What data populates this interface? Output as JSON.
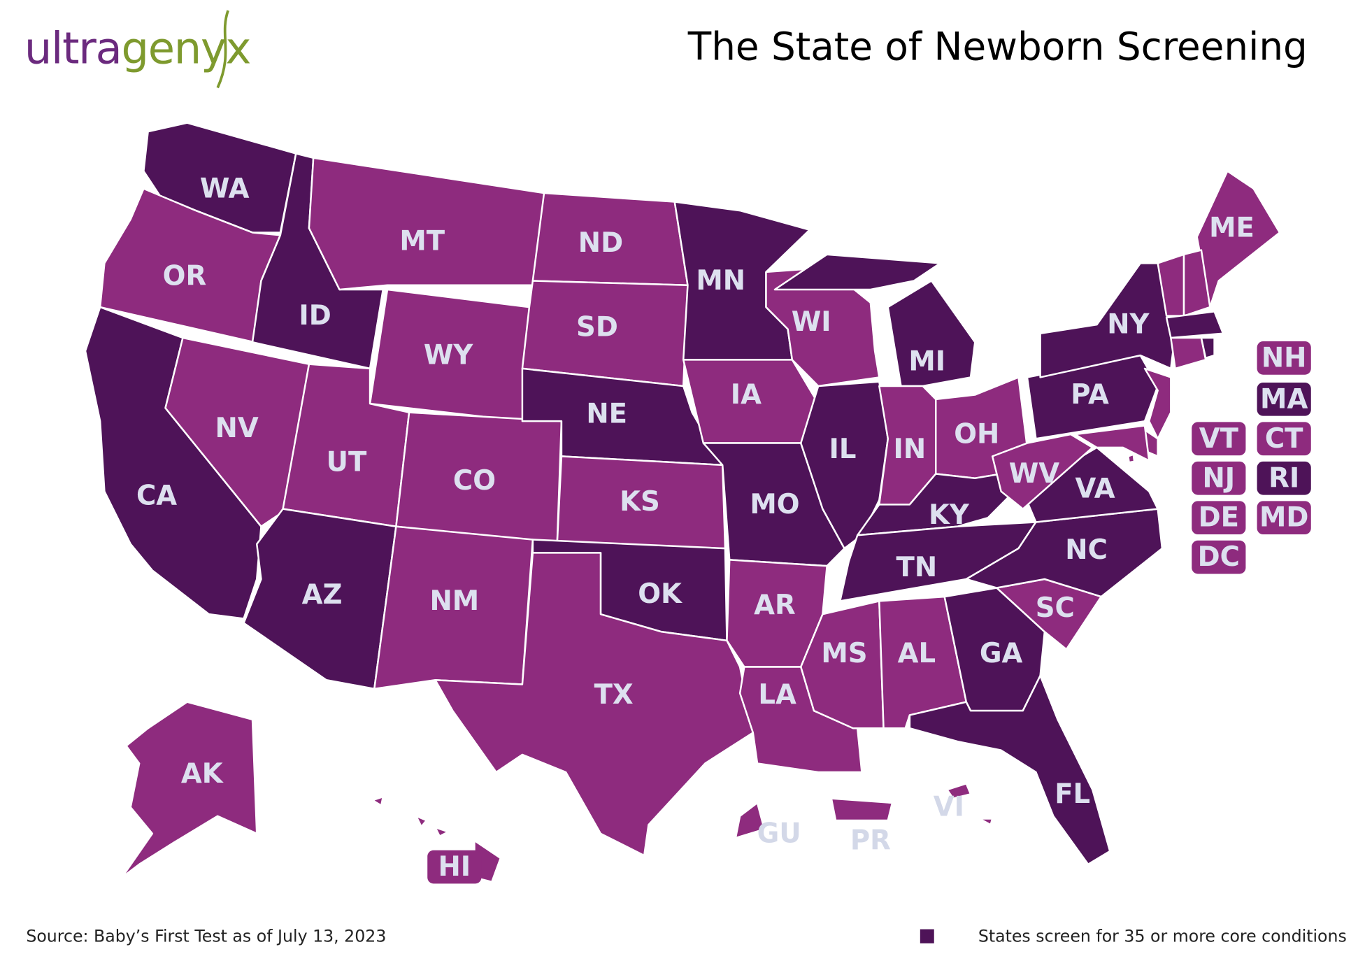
{
  "header": {
    "logo": [
      "ultra",
      "genyx"
    ],
    "title": "The State of Newborn Screening"
  },
  "map": {
    "colors": {
      "dark": "#4e1358",
      "light": "#8e2b7e",
      "territory": "#8e2b7e",
      "label": "#dde0ef",
      "territory_label": "#d3d8e8",
      "border": "#ffffff"
    },
    "states": [
      {
        "label": "WA",
        "group": "dark"
      },
      {
        "label": "OR",
        "group": "light"
      },
      {
        "label": "CA",
        "group": "dark"
      },
      {
        "label": "NV",
        "group": "light"
      },
      {
        "label": "ID",
        "group": "dark"
      },
      {
        "label": "MT",
        "group": "light"
      },
      {
        "label": "WY",
        "group": "light"
      },
      {
        "label": "UT",
        "group": "light"
      },
      {
        "label": "AZ",
        "group": "dark"
      },
      {
        "label": "CO",
        "group": "light"
      },
      {
        "label": "NM",
        "group": "light"
      },
      {
        "label": "ND",
        "group": "light"
      },
      {
        "label": "SD",
        "group": "light"
      },
      {
        "label": "NE",
        "group": "dark"
      },
      {
        "label": "KS",
        "group": "light"
      },
      {
        "label": "OK",
        "group": "dark"
      },
      {
        "label": "TX",
        "group": "light"
      },
      {
        "label": "MN",
        "group": "dark"
      },
      {
        "label": "IA",
        "group": "light"
      },
      {
        "label": "MO",
        "group": "dark"
      },
      {
        "label": "AR",
        "group": "light"
      },
      {
        "label": "LA",
        "group": "light"
      },
      {
        "label": "WI",
        "group": "light"
      },
      {
        "label": "IL",
        "group": "dark"
      },
      {
        "label": "MI",
        "group": "dark"
      },
      {
        "label": "IN",
        "group": "light"
      },
      {
        "label": "OH",
        "group": "light"
      },
      {
        "label": "KY",
        "group": "dark"
      },
      {
        "label": "TN",
        "group": "dark"
      },
      {
        "label": "MS",
        "group": "light"
      },
      {
        "label": "AL",
        "group": "light"
      },
      {
        "label": "GA",
        "group": "dark"
      },
      {
        "label": "FL",
        "group": "dark"
      },
      {
        "label": "SC",
        "group": "light"
      },
      {
        "label": "NC",
        "group": "dark"
      },
      {
        "label": "VA",
        "group": "dark"
      },
      {
        "label": "WV",
        "group": "light"
      },
      {
        "label": "PA",
        "group": "dark"
      },
      {
        "label": "NY",
        "group": "dark"
      },
      {
        "label": "ME",
        "group": "light"
      },
      {
        "label": "VT",
        "group": "light"
      },
      {
        "label": "NH",
        "group": "light"
      },
      {
        "label": "MA",
        "group": "dark"
      },
      {
        "label": "CT",
        "group": "light"
      },
      {
        "label": "RI",
        "group": "dark"
      },
      {
        "label": "NJ",
        "group": "light"
      },
      {
        "label": "DE",
        "group": "light"
      },
      {
        "label": "MD",
        "group": "light"
      },
      {
        "label": "DC",
        "group": "light"
      },
      {
        "label": "AK",
        "group": "light"
      },
      {
        "label": "HI",
        "group": "light"
      },
      {
        "label": "GU",
        "group": "territory"
      },
      {
        "label": "PR",
        "group": "territory"
      },
      {
        "label": "VI",
        "group": "territory"
      }
    ]
  },
  "footer": {
    "source": "Source: Baby’s First Test as of July 13, 2023",
    "legend": {
      "label": "States screen for 35 or more core conditions",
      "color": "#4e1358"
    }
  }
}
